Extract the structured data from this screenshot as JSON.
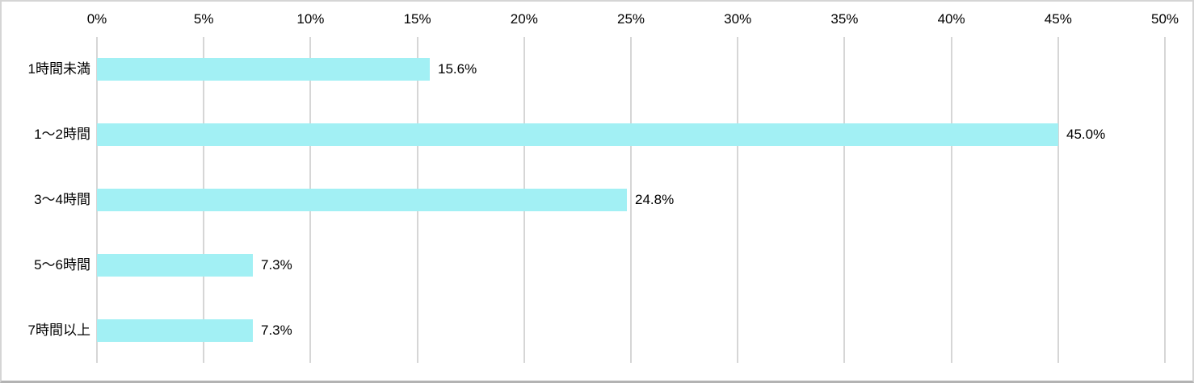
{
  "chart_data": {
    "type": "bar",
    "orientation": "horizontal",
    "title": "",
    "xlabel": "",
    "ylabel": "",
    "categories": [
      "1時間未満",
      "1～2時間",
      "3～4時間",
      "5～6時間",
      "7時間以上"
    ],
    "values": [
      15.6,
      45.0,
      24.8,
      7.3,
      7.3
    ],
    "value_labels": [
      "15.6%",
      "45.0%",
      "24.8%",
      "7.3%",
      "7.3%"
    ],
    "xlim": [
      0,
      50
    ],
    "x_tick_values": [
      0,
      5,
      10,
      15,
      20,
      25,
      30,
      35,
      40,
      45,
      50
    ],
    "x_tick_labels": [
      "0%",
      "5%",
      "10%",
      "15%",
      "20%",
      "25%",
      "30%",
      "35%",
      "40%",
      "45%",
      "50%"
    ],
    "axis_position": "top",
    "grid": true,
    "legend": false,
    "colors": {
      "bar_fill": "#a2f0f4",
      "grid_line": "#d6d6d6",
      "text": "#000000",
      "background": "#ffffff",
      "frame_border": "#d5d5d5"
    }
  }
}
